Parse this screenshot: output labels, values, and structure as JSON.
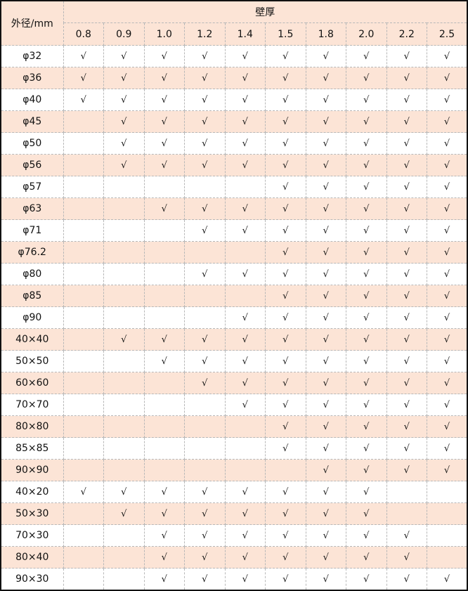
{
  "table": {
    "row_header_label": "外径/mm",
    "group_header_label": "壁厚",
    "columns": [
      "0.8",
      "0.9",
      "1.0",
      "1.2",
      "1.4",
      "1.5",
      "1.8",
      "2.0",
      "2.2",
      "2.5"
    ],
    "row_background_alt": "#fce4d6",
    "rows": [
      {
        "label": "φ32",
        "cells": [
          "√",
          "√",
          "√",
          "√",
          "√",
          "√",
          "√",
          "√",
          "√",
          "√"
        ]
      },
      {
        "label": "φ36",
        "cells": [
          "√",
          "√",
          "√",
          "√",
          "√",
          "√",
          "√",
          "√",
          "√",
          "√"
        ]
      },
      {
        "label": "φ40",
        "cells": [
          "√",
          "√",
          "√",
          "√",
          "√",
          "√",
          "√",
          "√",
          "√",
          "√"
        ]
      },
      {
        "label": "φ45",
        "cells": [
          "",
          "√",
          "√",
          "√",
          "√",
          "√",
          "√",
          "√",
          "√",
          "√"
        ]
      },
      {
        "label": "φ50",
        "cells": [
          "",
          "√",
          "√",
          "√",
          "√",
          "√",
          "√",
          "√",
          "√",
          "√"
        ]
      },
      {
        "label": "φ56",
        "cells": [
          "",
          "√",
          "√",
          "√",
          "√",
          "√",
          "√",
          "√",
          "√",
          "√"
        ]
      },
      {
        "label": "φ57",
        "cells": [
          "",
          "",
          "",
          "",
          "",
          "√",
          "√",
          "√",
          "√",
          "√"
        ]
      },
      {
        "label": "φ63",
        "cells": [
          "",
          "",
          "√",
          "√",
          "√",
          "√",
          "√",
          "√",
          "√",
          "√"
        ]
      },
      {
        "label": "φ71",
        "cells": [
          "",
          "",
          "",
          "√",
          "√",
          "√",
          "√",
          "√",
          "√",
          "√"
        ]
      },
      {
        "label": "φ76.2",
        "cells": [
          "",
          "",
          "",
          "",
          "",
          "√",
          "√",
          "√",
          "√",
          "√"
        ]
      },
      {
        "label": "φ80",
        "cells": [
          "",
          "",
          "",
          "√",
          "√",
          "√",
          "√",
          "√",
          "√",
          "√"
        ]
      },
      {
        "label": "φ85",
        "cells": [
          "",
          "",
          "",
          "",
          "",
          "√",
          "√",
          "√",
          "√",
          "√"
        ]
      },
      {
        "label": "φ90",
        "cells": [
          "",
          "",
          "",
          "",
          "√",
          "√",
          "√",
          "√",
          "√",
          "√"
        ]
      },
      {
        "label": "40×40",
        "cells": [
          "",
          "√",
          "√",
          "√",
          "√",
          "√",
          "√",
          "√",
          "√",
          "√"
        ]
      },
      {
        "label": "50×50",
        "cells": [
          "",
          "",
          "√",
          "√",
          "√",
          "√",
          "√",
          "√",
          "√",
          "√"
        ]
      },
      {
        "label": "60×60",
        "cells": [
          "",
          "",
          "",
          "√",
          "√",
          "√",
          "√",
          "√",
          "√",
          "√"
        ]
      },
      {
        "label": "70×70",
        "cells": [
          "",
          "",
          "",
          "",
          "√",
          "√",
          "√",
          "√",
          "√",
          "√"
        ]
      },
      {
        "label": "80×80",
        "cells": [
          "",
          "",
          "",
          "",
          "",
          "√",
          "√",
          "√",
          "√",
          "√"
        ]
      },
      {
        "label": "85×85",
        "cells": [
          "",
          "",
          "",
          "",
          "",
          "√",
          "√",
          "√",
          "√",
          "√"
        ]
      },
      {
        "label": "90×90",
        "cells": [
          "",
          "",
          "",
          "",
          "",
          "",
          "√",
          "√",
          "√",
          "√"
        ]
      },
      {
        "label": "40×20",
        "cells": [
          "√",
          "√",
          "√",
          "√",
          "√",
          "√",
          "√",
          "√",
          "",
          ""
        ]
      },
      {
        "label": "50×30",
        "cells": [
          "",
          "√",
          "√",
          "√",
          "√",
          "√",
          "√",
          "√",
          "",
          ""
        ]
      },
      {
        "label": "70×30",
        "cells": [
          "",
          "",
          "√",
          "√",
          "√",
          "√",
          "√",
          "√",
          "√",
          ""
        ]
      },
      {
        "label": "80×40",
        "cells": [
          "",
          "",
          "√",
          "√",
          "√",
          "√",
          "√",
          "√",
          "√",
          ""
        ]
      },
      {
        "label": "90×30",
        "cells": [
          "",
          "",
          "√",
          "√",
          "√",
          "√",
          "√",
          "√",
          "√",
          "√"
        ]
      }
    ]
  }
}
